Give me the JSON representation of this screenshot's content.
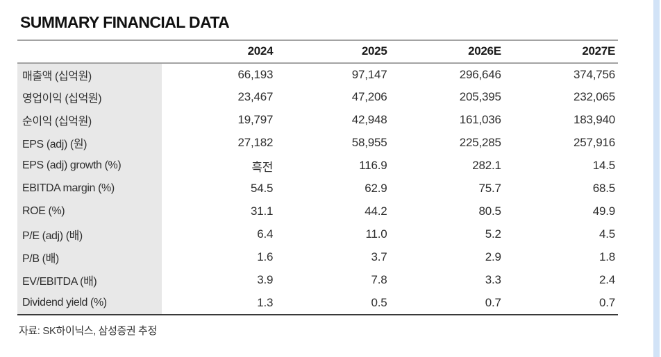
{
  "page": {
    "title": "SUMMARY FINANCIAL DATA",
    "source_note": "자료: SK하이닉스, 삼성증권 추정"
  },
  "table": {
    "columns": [
      "2024",
      "2025",
      "2026E",
      "2027E"
    ],
    "rows": [
      {
        "label": "매출액 (십억원)",
        "values": [
          "66,193",
          "97,147",
          "296,646",
          "374,756"
        ]
      },
      {
        "label": "영업이익 (십억원)",
        "values": [
          "23,467",
          "47,206",
          "205,395",
          "232,065"
        ]
      },
      {
        "label": "순이익 (십억원)",
        "values": [
          "19,797",
          "42,948",
          "161,036",
          "183,940"
        ]
      },
      {
        "label": "EPS (adj) (원)",
        "values": [
          "27,182",
          "58,955",
          "225,285",
          "257,916"
        ]
      },
      {
        "label": "EPS (adj) growth (%)",
        "values": [
          "흑전",
          "116.9",
          "282.1",
          "14.5"
        ]
      },
      {
        "label": "EBITDA margin (%)",
        "values": [
          "54.5",
          "62.9",
          "75.7",
          "68.5"
        ]
      },
      {
        "label": "ROE (%)",
        "values": [
          "31.1",
          "44.2",
          "80.5",
          "49.9"
        ]
      },
      {
        "label": "P/E (adj) (배)",
        "values": [
          "6.4",
          "11.0",
          "5.2",
          "4.5"
        ]
      },
      {
        "label": "P/B (배)",
        "values": [
          "1.6",
          "3.7",
          "2.9",
          "1.8"
        ]
      },
      {
        "label": "EV/EBITDA (배)",
        "values": [
          "3.9",
          "7.8",
          "3.3",
          "2.4"
        ]
      },
      {
        "label": "Dividend yield (%)",
        "values": [
          "1.3",
          "0.5",
          "0.7",
          "0.7"
        ]
      }
    ]
  },
  "colors": {
    "label_bg": "#e8e8e8",
    "header_line": "#a3a3a3",
    "bottom_line": "#3a3a3a",
    "edge_stripe": "#d2e3f7",
    "text": "#2e2e2e",
    "title": "#111111"
  }
}
